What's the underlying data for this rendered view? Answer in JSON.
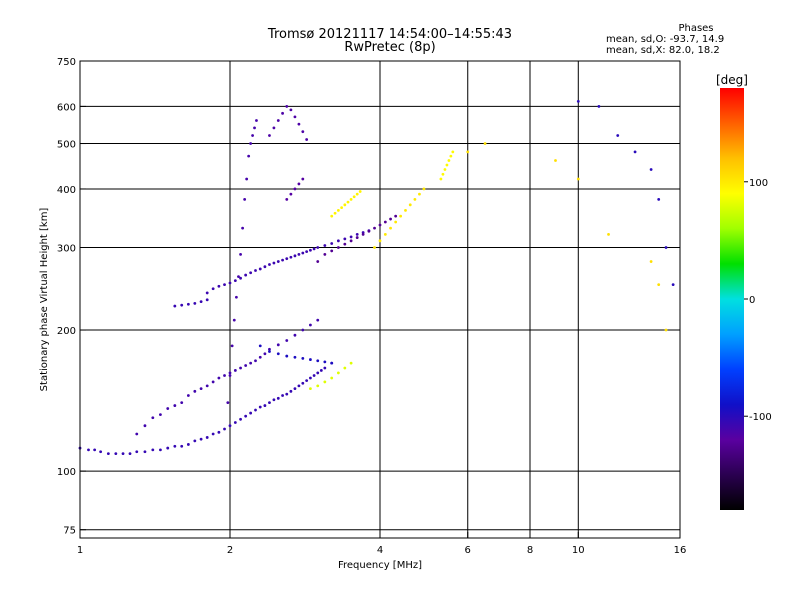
{
  "header": {
    "title_line1": "Tromsø 20121117 14:54:00–14:55:43",
    "title_line2": "RwPretec (8p)"
  },
  "phase_info": {
    "heading": "Phases",
    "line1": "mean, sd,O: -93.7, 14.9",
    "line2": "mean, sd,X:  82.0, 18.2"
  },
  "chart_data": {
    "type": "scatter",
    "xlabel": "Frequency [MHz]",
    "ylabel": "Stationary phase Virtual Height [km]",
    "xscale": "log",
    "yscale": "log",
    "xlim": [
      1,
      16
    ],
    "ylim": [
      72,
      750
    ],
    "xticks": [
      1,
      2,
      4,
      6,
      8,
      10,
      16
    ],
    "yticks": [
      75,
      100,
      200,
      300,
      400,
      500,
      600,
      750
    ],
    "grid": true,
    "colorbar": {
      "label": "[deg]",
      "range": [
        -180,
        180
      ],
      "ticks": [
        100,
        0,
        -100
      ],
      "colors": [
        "#000000",
        "#2a0050",
        "#5a00a0",
        "#1010c8",
        "#0040ff",
        "#00a0ff",
        "#00e0e0",
        "#00e000",
        "#a0ff00",
        "#ffff00",
        "#ffc000",
        "#ff6000",
        "#ff0000"
      ]
    },
    "series": [
      {
        "colorVal": -105,
        "x": [
          1.0,
          1.04,
          1.07,
          1.1,
          1.14,
          1.18,
          1.22,
          1.26,
          1.3,
          1.35,
          1.4,
          1.45,
          1.5,
          1.55,
          1.6,
          1.65,
          1.7,
          1.75,
          1.8,
          1.85,
          1.9,
          1.95,
          2.0,
          2.05,
          2.1,
          2.15,
          2.2,
          2.25,
          2.3,
          2.35,
          2.4,
          2.45,
          2.5,
          2.55,
          2.6,
          2.65,
          2.7,
          2.75,
          2.8,
          2.85,
          2.9,
          2.95,
          3.0,
          3.05,
          3.1,
          3.2
        ],
        "y": [
          112,
          111,
          111,
          110,
          109,
          109,
          109,
          109,
          110,
          110,
          111,
          111,
          112,
          113,
          113,
          114,
          116,
          117,
          118,
          120,
          121,
          123,
          125,
          127,
          129,
          131,
          133,
          135,
          137,
          138,
          140,
          142,
          143,
          145,
          146,
          148,
          150,
          152,
          154,
          156,
          158,
          160,
          162,
          164,
          166,
          170
        ]
      },
      {
        "colorVal": -110,
        "x": [
          1.3,
          1.35,
          1.4,
          1.45,
          1.5,
          1.55,
          1.6,
          1.65,
          1.7,
          1.75,
          1.8,
          1.85,
          1.9,
          1.95,
          2.0,
          2.05,
          2.1,
          2.15,
          2.2,
          2.25,
          2.3,
          2.35,
          2.4,
          2.5,
          2.6,
          2.7,
          2.8,
          2.9,
          3.0
        ],
        "y": [
          120,
          125,
          130,
          132,
          136,
          138,
          140,
          145,
          148,
          150,
          152,
          155,
          158,
          160,
          162,
          164,
          166,
          168,
          170,
          172,
          175,
          178,
          182,
          186,
          190,
          195,
          200,
          205,
          210
        ]
      },
      {
        "colorVal": -112,
        "x": [
          1.98,
          2.0,
          2.02,
          2.04,
          2.06,
          2.08,
          2.1,
          2.12,
          2.14,
          2.16,
          2.18,
          2.2,
          2.22,
          2.24,
          2.26
        ],
        "y": [
          140,
          160,
          185,
          210,
          235,
          260,
          290,
          330,
          380,
          420,
          470,
          500,
          520,
          540,
          560
        ]
      },
      {
        "colorVal": -108,
        "x": [
          1.8,
          1.85,
          1.9,
          1.95,
          2.0,
          2.05,
          2.1,
          2.15,
          2.2,
          2.25,
          2.3,
          2.35,
          2.4,
          2.45,
          2.5,
          2.55,
          2.6,
          2.65,
          2.7,
          2.75,
          2.8,
          2.85,
          2.9,
          2.95,
          3.0,
          3.1,
          3.2,
          3.3,
          3.4,
          3.5,
          3.6,
          3.7,
          3.8
        ],
        "y": [
          240,
          245,
          248,
          250,
          252,
          255,
          258,
          262,
          265,
          268,
          270,
          273,
          276,
          278,
          280,
          282,
          284,
          286,
          288,
          290,
          292,
          294,
          296,
          298,
          300,
          303,
          306,
          310,
          313,
          316,
          320,
          323,
          326
        ]
      },
      {
        "colorVal": -115,
        "x": [
          2.4,
          2.45,
          2.5,
          2.55,
          2.6,
          2.65,
          2.7,
          2.75,
          2.8,
          2.85
        ],
        "y": [
          520,
          540,
          560,
          580,
          600,
          590,
          570,
          550,
          530,
          510
        ]
      },
      {
        "colorVal": -118,
        "x": [
          2.6,
          2.65,
          2.7,
          2.75,
          2.8
        ],
        "y": [
          380,
          390,
          400,
          410,
          420
        ]
      },
      {
        "colorVal": -106,
        "x": [
          1.55,
          1.6,
          1.65,
          1.7,
          1.75,
          1.8
        ],
        "y": [
          225,
          226,
          227,
          228,
          230,
          232
        ]
      },
      {
        "colorVal": -95,
        "x": [
          2.3,
          2.4,
          2.5,
          2.6,
          2.7,
          2.8,
          2.9,
          3.0,
          3.1,
          3.2
        ],
        "y": [
          185,
          180,
          178,
          176,
          175,
          174,
          173,
          172,
          171,
          170
        ]
      },
      {
        "colorVal": -125,
        "x": [
          3.0,
          3.1,
          3.2,
          3.3,
          3.4,
          3.5,
          3.6,
          3.7,
          3.8,
          3.9,
          4.0,
          4.1,
          4.2,
          4.3
        ],
        "y": [
          280,
          290,
          295,
          300,
          305,
          310,
          315,
          320,
          325,
          330,
          335,
          340,
          345,
          350
        ]
      },
      {
        "colorVal": 95,
        "x": [
          3.2,
          3.25,
          3.3,
          3.35,
          3.4,
          3.45,
          3.5,
          3.55,
          3.6,
          3.65
        ],
        "y": [
          350,
          355,
          360,
          365,
          370,
          375,
          380,
          385,
          390,
          395
        ]
      },
      {
        "colorVal": 100,
        "x": [
          3.9,
          4.0,
          4.1,
          4.2,
          4.3,
          4.4,
          4.5,
          4.6,
          4.7,
          4.8,
          4.9
        ],
        "y": [
          300,
          310,
          320,
          330,
          340,
          350,
          360,
          370,
          380,
          390,
          400
        ]
      },
      {
        "colorVal": 92,
        "x": [
          5.3,
          5.35,
          5.4,
          5.45,
          5.5,
          5.55,
          5.6
        ],
        "y": [
          420,
          430,
          440,
          450,
          460,
          470,
          480
        ]
      },
      {
        "colorVal": 80,
        "x": [
          2.9,
          3.0,
          3.1,
          3.2,
          3.3,
          3.4,
          3.5
        ],
        "y": [
          150,
          152,
          155,
          158,
          162,
          166,
          170
        ]
      },
      {
        "colorVal": -100,
        "x": [
          10.0,
          11.0,
          12.0,
          13.0,
          14.0,
          14.5,
          15.0,
          15.5
        ],
        "y": [
          615,
          600,
          520,
          480,
          440,
          380,
          300,
          250
        ]
      },
      {
        "colorVal": 105,
        "x": [
          6.0,
          6.5,
          9.0,
          10.0,
          11.5,
          14.0,
          14.5,
          15.0
        ],
        "y": [
          480,
          500,
          460,
          420,
          320,
          280,
          250,
          200
        ]
      }
    ]
  }
}
